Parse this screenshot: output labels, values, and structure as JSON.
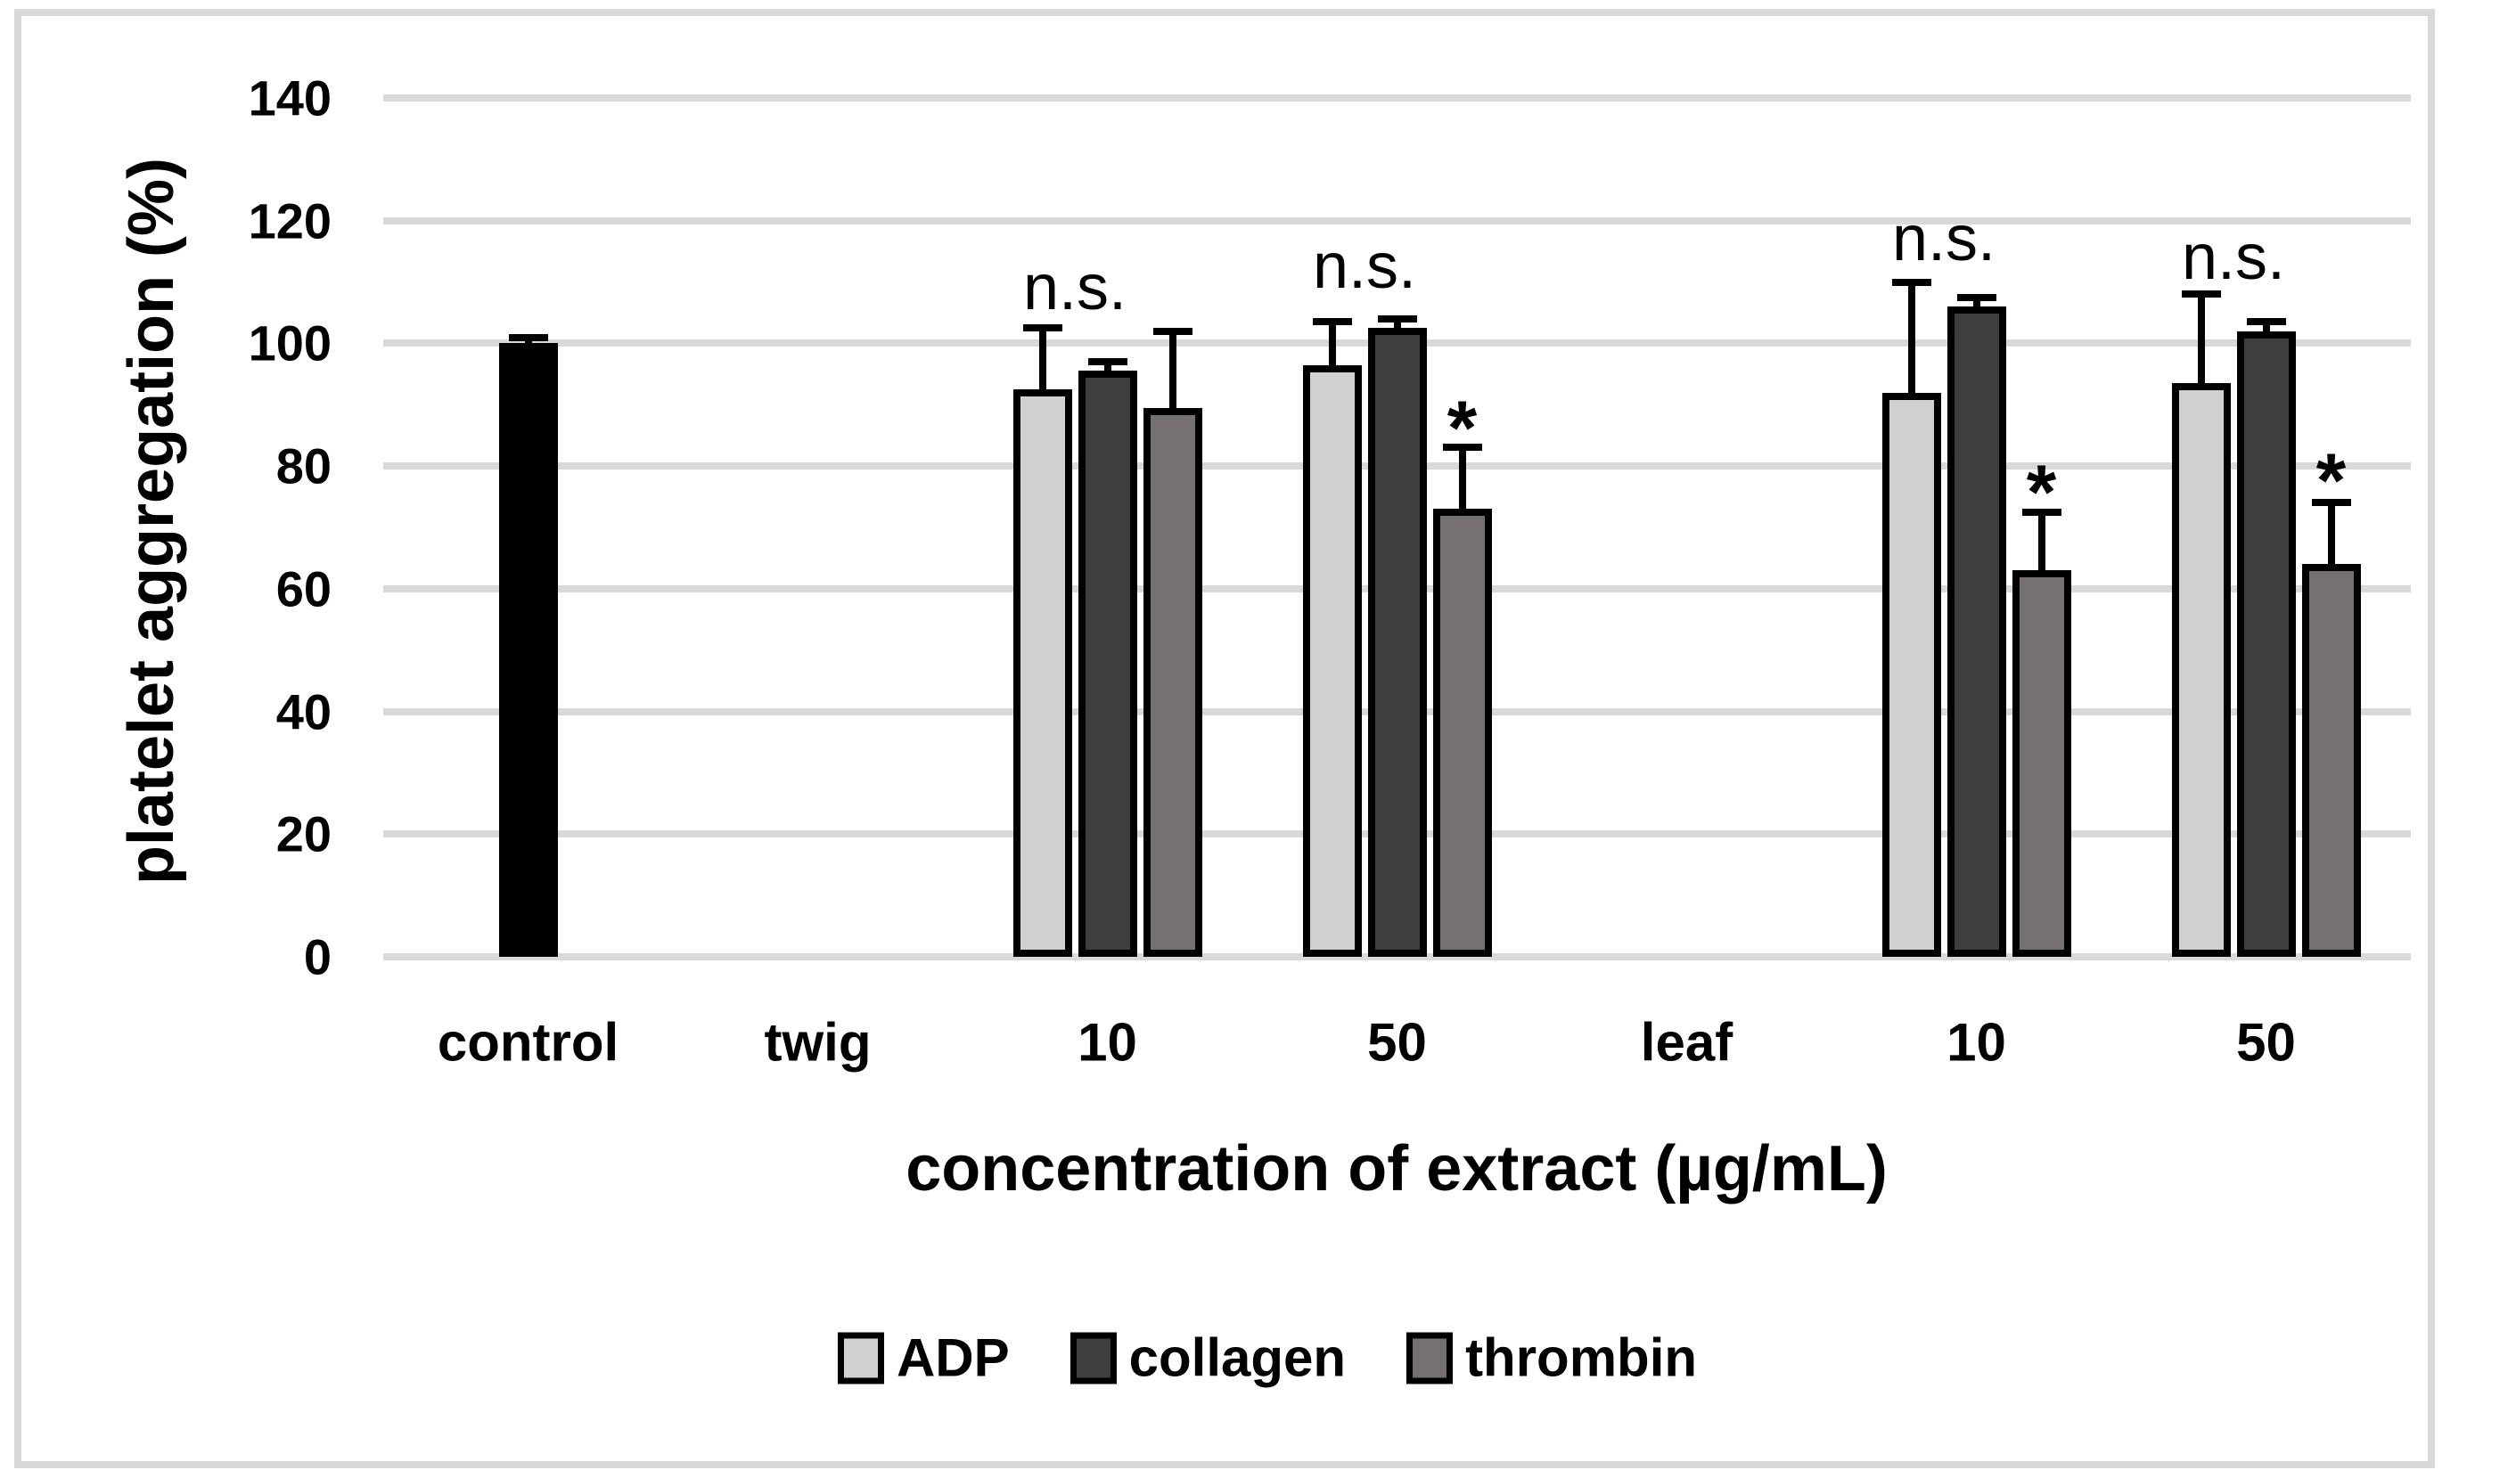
{
  "chart_data": {
    "type": "bar",
    "title": "",
    "ylabel": "platelet aggregation (%)",
    "xlabel": "concentration of extract (µg/mL)",
    "ylim": [
      0,
      140
    ],
    "yticks": [
      0,
      20,
      40,
      60,
      80,
      100,
      120,
      140
    ],
    "grid": true,
    "legend_position": "bottom-center",
    "categories": [
      "control",
      "twig",
      "10",
      "50",
      "leaf",
      "10",
      "50"
    ],
    "control_series": {
      "name": "control",
      "color": "#000000",
      "category_index": 0,
      "value": 100,
      "error_plus": 1
    },
    "series": [
      {
        "name": "ADP",
        "color": "#d2d1cf",
        "values": [
          null,
          null,
          92.5,
          96.5,
          null,
          92,
          93.5
        ],
        "errors_plus": [
          null,
          null,
          10,
          7,
          null,
          18,
          14.5
        ]
      },
      {
        "name": "collagen",
        "color": "#3e3e3e",
        "values": [
          null,
          null,
          95.5,
          102.5,
          null,
          106,
          102
        ],
        "errors_plus": [
          null,
          null,
          1.5,
          1.5,
          null,
          1.5,
          1.5
        ]
      },
      {
        "name": "thrombin",
        "color": "#767071",
        "values": [
          null,
          null,
          89.5,
          73,
          null,
          63,
          64
        ],
        "errors_plus": [
          null,
          null,
          12.5,
          10,
          null,
          9.5,
          10
        ]
      }
    ],
    "annotations": {
      "ns_text": "n.s.",
      "star_text": "*",
      "ns": [
        {
          "category_index": 2,
          "y": 109
        },
        {
          "category_index": 3,
          "y": 112.5
        },
        {
          "category_index": 5,
          "y": 117
        },
        {
          "category_index": 6,
          "y": 114
        }
      ],
      "stars": [
        {
          "category_index": 3,
          "y": 88
        },
        {
          "category_index": 5,
          "y": 77.5
        },
        {
          "category_index": 6,
          "y": 79.5
        }
      ]
    },
    "legend": {
      "entries": [
        {
          "label": "ADP"
        },
        {
          "label": "collagen"
        },
        {
          "label": "thrombin"
        }
      ]
    },
    "colors": {
      "gridline": "#d9d9d9",
      "figure_border": "#d8d8d8",
      "bar_outline": "#000000",
      "error_bar": "#000000",
      "background": "#ffffff"
    }
  }
}
